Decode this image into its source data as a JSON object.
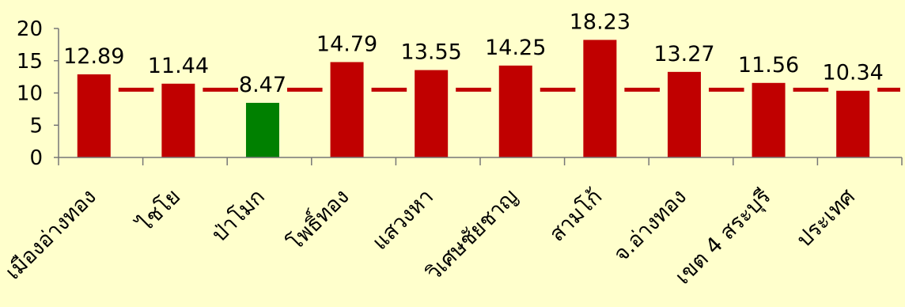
{
  "chart_data": {
    "type": "bar",
    "categories": [
      "เมืองอ่างทอง",
      "ไชโย",
      "ป่าโมก",
      "โพธิ์ทอง",
      "แสวงหา",
      "วิเศษชัยชาญ",
      "สามโก้",
      "จ.อ่างทอง",
      "เขต 4 สระบุรี",
      "ประเทศ"
    ],
    "values": [
      12.89,
      11.44,
      8.47,
      14.79,
      13.55,
      14.25,
      18.23,
      13.27,
      11.56,
      10.34
    ],
    "data_labels": [
      "12.89",
      "11.44",
      "8.47",
      "14.79",
      "13.55",
      "14.25",
      "18.23",
      "13.27",
      "11.56",
      "10.34"
    ],
    "bar_colors": [
      "#c00000",
      "#c00000",
      "#008000",
      "#c00000",
      "#c00000",
      "#c00000",
      "#c00000",
      "#c00000",
      "#c00000",
      "#c00000"
    ],
    "reference_line": {
      "style": "dashed",
      "color": "#c00000",
      "value": 10.5
    },
    "y_ticks": [
      "0",
      "5",
      "10",
      "15",
      "20"
    ],
    "ylim": [
      0,
      20
    ],
    "grid": false,
    "legend": "none",
    "title": "",
    "xlabel": "",
    "ylabel": "",
    "colors": {
      "background": "#ffffcc",
      "bar": "#c00000",
      "highlight_bar": "#008000",
      "axis": "#777777"
    }
  }
}
